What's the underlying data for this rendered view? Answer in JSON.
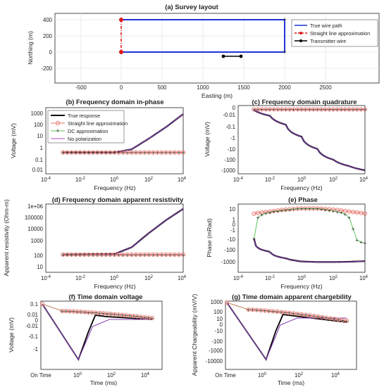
{
  "chart_data": [
    {
      "id": "a",
      "type": "line",
      "title": "(a) Survey layout",
      "xlabel": "Easting (m)",
      "ylabel": "Northing (m)",
      "xlim": [
        -1000,
        3000
      ],
      "ylim": [
        -300,
        450
      ],
      "xticks": [
        -500,
        0,
        500,
        1000,
        1500,
        2000,
        2500
      ],
      "yticks": [
        -200,
        0,
        200,
        400
      ],
      "grid": true,
      "legend": "top-right",
      "colors": {
        "true": "#1f33d6",
        "straight": "#e01818",
        "tx": "#000000"
      },
      "series": [
        {
          "name": "True wire path",
          "x": [
            0,
            2000,
            2000,
            0
          ],
          "y": [
            400,
            400,
            0,
            0
          ]
        },
        {
          "name": "Straight line approximation",
          "x": [
            0,
            0
          ],
          "y": [
            0,
            400
          ]
        },
        {
          "name": "Transmitter wire",
          "x": [
            1250,
            1450
          ],
          "y": [
            -50,
            -50
          ]
        }
      ]
    },
    {
      "id": "b",
      "type": "line",
      "title": "(b) Frequency domain in-phase",
      "xlabel": "Frequency (Hz)",
      "ylabel": "Voltage (mV)",
      "xscale": "log",
      "xlim": [
        0.0001,
        10000
      ],
      "xticks": [
        "10^-4",
        "10^-2",
        "10^0",
        "10^2",
        "10^4"
      ],
      "yticks": [
        "1000",
        "100",
        "10",
        "1",
        "0.1",
        "0.01"
      ],
      "legend": "top-left",
      "series": [
        {
          "name": "True response",
          "x": [
            0.001,
            1,
            10,
            100,
            1000,
            10000
          ],
          "y": [
            0.25,
            0.25,
            0.5,
            5,
            60,
            1000
          ]
        },
        {
          "name": "Straight line approximation",
          "x": [
            0.001,
            10000
          ],
          "y": [
            0.25,
            0.25
          ]
        },
        {
          "name": "DC approximation",
          "x": [
            0.001,
            10000
          ],
          "y": [
            0.25,
            0.25
          ]
        },
        {
          "name": "No polarization",
          "x": [
            0.001,
            1,
            10,
            100,
            1000,
            10000
          ],
          "y": [
            0.25,
            0.25,
            0.5,
            5,
            60,
            1000
          ]
        }
      ]
    },
    {
      "id": "c",
      "type": "line",
      "title": "(c) Frequency domain quadrature",
      "xlabel": "Frequency (Hz)",
      "ylabel": "Voltage (mV)",
      "xscale": "log",
      "xlim": [
        0.0001,
        10000
      ],
      "xticks": [
        "10^-4",
        "10^-2",
        "10^0",
        "10^2",
        "10^4"
      ],
      "yticks": [
        "0",
        "-0.01",
        "-0.1",
        "-1",
        "-10",
        "-100",
        "-1000"
      ],
      "series": [
        {
          "name": "True response",
          "x": [
            0.001,
            0.01,
            0.1,
            1,
            10,
            100,
            1000,
            10000
          ],
          "y": [
            -0.004,
            -0.03,
            -0.2,
            -2,
            -20,
            -150,
            -500,
            -1100
          ]
        },
        {
          "name": "Straight line approximation",
          "x": [
            0.001,
            10000
          ],
          "y": [
            -0.002,
            -0.002
          ]
        },
        {
          "name": "DC approximation",
          "x": [
            0.001,
            10000
          ],
          "y": [
            -0.002,
            -0.002
          ]
        }
      ]
    },
    {
      "id": "d",
      "type": "line",
      "title": "(d) Frequency domain apparent resistivity",
      "xlabel": "Frequency (Hz)",
      "ylabel": "Apparent resistivity (Ohm-m)",
      "xscale": "log",
      "xlim": [
        0.0001,
        10000
      ],
      "xticks": [
        "10^-4",
        "10^-2",
        "10^0",
        "10^2",
        "10^4"
      ],
      "yticks": [
        "1e+06",
        "100000",
        "10000",
        "1000",
        "100",
        "10"
      ],
      "series": [
        {
          "name": "True response",
          "x": [
            0.001,
            1,
            10,
            100,
            1000,
            10000
          ],
          "y": [
            100,
            110,
            400,
            6000,
            70000,
            600000
          ]
        },
        {
          "name": "Straight line approximation",
          "x": [
            0.001,
            10000
          ],
          "y": [
            100,
            100
          ]
        },
        {
          "name": "DC approximation",
          "x": [
            0.001,
            10000
          ],
          "y": [
            100,
            100
          ]
        }
      ]
    },
    {
      "id": "e",
      "type": "line",
      "title": "(e) Phase",
      "xlabel": "Frequency (Hz)",
      "ylabel": "Phase (mRad)",
      "xscale": "log",
      "xlim": [
        0.0001,
        10000
      ],
      "xticks": [
        "10^-4",
        "10^-2",
        "10^0",
        "10^2",
        "10^4"
      ],
      "yticks": [
        "10",
        "1",
        "0",
        "-1",
        "-10",
        "-100",
        "-1000"
      ],
      "series": [
        {
          "name": "True response",
          "x": [
            0.001,
            0.01,
            0.1,
            1,
            10,
            100,
            1000,
            10000
          ],
          "y": [
            -0.3,
            -30,
            -300,
            -900,
            -1100,
            -1100,
            -1000,
            -800
          ]
        },
        {
          "name": "Straight line approximation",
          "x": [
            0.001,
            0.01,
            0.1,
            1,
            10,
            100,
            1000,
            10000
          ],
          "y": [
            2,
            4,
            8,
            12,
            12,
            8,
            4,
            2
          ]
        },
        {
          "name": "DC approximation",
          "x": [
            0.001,
            0.01,
            0.1,
            1,
            10,
            100,
            1000,
            10000
          ],
          "y": [
            -0.3,
            3,
            7,
            12,
            11,
            5,
            0.5,
            -1.5
          ]
        }
      ]
    },
    {
      "id": "f",
      "type": "line",
      "title": "(f) Time domain voltage",
      "xlabel": "Time (ms)",
      "ylabel": "Voltage (mV)",
      "xticks": [
        "On Time",
        "10^0",
        "10^2",
        "10^4"
      ],
      "yticks": [
        "0.1",
        "0.01",
        "0",
        "-0.01",
        "-0.1",
        "-1"
      ]
    },
    {
      "id": "g",
      "type": "line",
      "title": "(g) Time domain apparent chargebility",
      "xlabel": "Time (ms)",
      "ylabel": "Apparent Chargeability (mV/V)",
      "xticks": [
        "On Time",
        "10^0",
        "10^2",
        "10^4"
      ],
      "yticks": [
        "1000",
        "100",
        "10",
        "0",
        "-10",
        "-100",
        "-1000",
        "-10000"
      ]
    }
  ]
}
